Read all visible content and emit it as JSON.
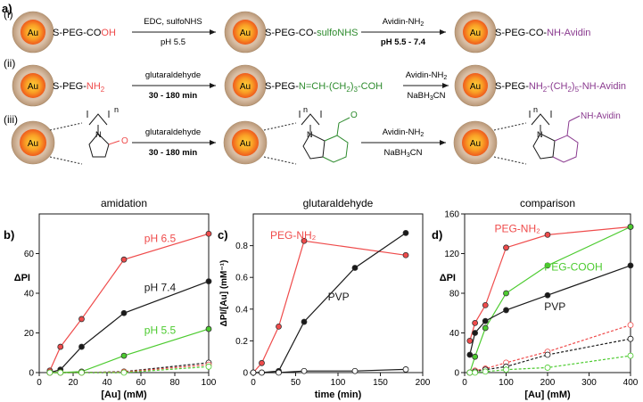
{
  "figure": {
    "scheme": {
      "panel_label": "a)",
      "particle_label": "Au",
      "rows": [
        {
          "roman": "(i)",
          "start_ligand": [
            "S-PEG-CO",
            "OH"
          ],
          "step1_above": "EDC, sulfoNHS",
          "step1_below": "pH 5.5",
          "step1_below_bold": false,
          "mid_ligand": [
            "S-PEG-CO-",
            "sulfoNHS"
          ],
          "step2_above": "Avidin-NH",
          "step2_above_sub": "2",
          "step2_below": "pH 5.5 - 7.4",
          "step2_below_bold": true,
          "end_ligand": [
            "S-PEG-CO-",
            "NH-Avidin"
          ]
        },
        {
          "roman": "(ii)",
          "start_ligand": [
            "S-PEG-",
            "NH",
            "2"
          ],
          "step1_above": "glutaraldehyde",
          "step1_below": "30 - 180 min",
          "step1_below_bold": true,
          "mid_ligand": [
            "S-PEG-",
            "N=CH-(CH",
            "2",
            ")",
            "3",
            "-COH"
          ],
          "step2_above": "Avidin-NH",
          "step2_above_sub": "2",
          "step2_below": "NaBH",
          "step2_below_sub": "3",
          "step2_below_tail": "CN",
          "end_ligand": [
            "S-PEG-",
            "NH",
            "2",
            "-(CH",
            "2",
            ")",
            "5",
            "-NH-Avidin"
          ]
        },
        {
          "roman": "(iii)",
          "step1_above": "glutaraldehyde",
          "step1_below": "30 - 180 min",
          "step1_below_bold": true,
          "step2_above": "Avidin-NH",
          "step2_above_sub": "2",
          "step2_below": "NaBH",
          "step2_below_sub": "3",
          "step2_below_tail": "CN",
          "n_label": "n",
          "end_label": "NH-Avidin",
          "ketone_o": "O",
          "aldehyde_o": "O",
          "ring_n": "N"
        }
      ]
    },
    "colors": {
      "red": "#ef4b4b",
      "black": "#1a1a1a",
      "green": "#4ccb2f",
      "purple": "#8a3a8f",
      "dark_green": "#2e8b2e",
      "gold_shell": "#c8a98f",
      "core_outer": "#f06a1f",
      "core_inner": "#fdd13a",
      "ring_purple": "#8a3a8f"
    }
  },
  "chart_data": [
    {
      "panel_label": "b)",
      "type": "line",
      "title": "amidation",
      "xlabel": "[Au] (mM)",
      "ylabel": "ΔPI",
      "xlim": [
        0,
        100
      ],
      "ylim": [
        0,
        80
      ],
      "xticks": [
        0,
        20,
        40,
        60,
        80,
        100
      ],
      "yticks": [
        0,
        20,
        40,
        60
      ],
      "series": [
        {
          "name": "pH 6.5",
          "color": "#ef4b4b",
          "dashed": false,
          "open": false,
          "x": [
            6.25,
            12.5,
            25,
            50,
            100
          ],
          "y": [
            1,
            13,
            27,
            57,
            70
          ]
        },
        {
          "name": "pH 7.4",
          "color": "#1a1a1a",
          "dashed": false,
          "open": false,
          "x": [
            6.25,
            12.5,
            25,
            50,
            100
          ],
          "y": [
            0,
            1.5,
            13,
            30,
            46
          ]
        },
        {
          "name": "pH 5.5",
          "color": "#4ccb2f",
          "dashed": false,
          "open": false,
          "x": [
            6.25,
            12.5,
            25,
            50,
            100
          ],
          "y": [
            0,
            0,
            0.5,
            8.5,
            22
          ]
        },
        {
          "name": "",
          "color": "#1a1a1a",
          "dashed": true,
          "open": true,
          "x": [
            6.25,
            12.5,
            25,
            50,
            100
          ],
          "y": [
            0,
            0,
            0,
            0.5,
            5
          ]
        },
        {
          "name": "",
          "color": "#ef4b4b",
          "dashed": true,
          "open": true,
          "x": [
            6.25,
            12.5,
            25,
            50,
            100
          ],
          "y": [
            0,
            0,
            0,
            0.3,
            4
          ]
        },
        {
          "name": "",
          "color": "#4ccb2f",
          "dashed": true,
          "open": true,
          "x": [
            6.25,
            12.5,
            25,
            50,
            100
          ],
          "y": [
            0,
            0,
            0,
            0,
            3
          ]
        }
      ]
    },
    {
      "panel_label": "c)",
      "type": "line",
      "title": "glutaraldehyde",
      "xlabel": "time (min)",
      "ylabel": "ΔPI/[Au] (mM⁻¹)",
      "xlim": [
        0,
        200
      ],
      "ylim": [
        0,
        1.0
      ],
      "xticks": [
        0,
        50,
        100,
        150,
        200
      ],
      "yticks": [
        0,
        0.2,
        0.4,
        0.6,
        0.8
      ],
      "series": [
        {
          "name": "PEG-NH₂",
          "color": "#ef4b4b",
          "dashed": false,
          "open": false,
          "x": [
            0,
            10,
            30,
            60,
            180
          ],
          "y": [
            0,
            0.06,
            0.29,
            0.83,
            0.74
          ]
        },
        {
          "name": "PVP",
          "color": "#1a1a1a",
          "dashed": false,
          "open": false,
          "x": [
            0,
            10,
            30,
            60,
            120,
            180
          ],
          "y": [
            0,
            0,
            0.01,
            0.32,
            0.66,
            0.88
          ]
        },
        {
          "name": "",
          "color": "#1a1a1a",
          "dashed": false,
          "open": true,
          "x": [
            0,
            10,
            30,
            60,
            120,
            180
          ],
          "y": [
            0,
            0,
            0,
            0.01,
            0.01,
            0.02
          ]
        }
      ]
    },
    {
      "panel_label": "d)",
      "type": "line",
      "title": "comparison",
      "xlabel": "[Au] (mM)",
      "ylabel": "ΔPI",
      "xlim": [
        0,
        400
      ],
      "ylim": [
        0,
        160
      ],
      "xticks": [
        0,
        100,
        200,
        300,
        400
      ],
      "yticks": [
        0,
        40,
        80,
        120,
        160
      ],
      "series": [
        {
          "name": "PEG-NH₂",
          "color": "#ef4b4b",
          "dashed": false,
          "open": false,
          "x": [
            12.5,
            25,
            50,
            100,
            200,
            400
          ],
          "y": [
            32,
            50,
            68,
            126,
            139,
            147
          ]
        },
        {
          "name": "PEG-COOH",
          "color": "#4ccb2f",
          "dashed": false,
          "open": false,
          "x": [
            12.5,
            25,
            50,
            100,
            200,
            400
          ],
          "y": [
            0,
            16,
            45,
            80,
            108,
            147
          ]
        },
        {
          "name": "PVP",
          "color": "#1a1a1a",
          "dashed": false,
          "open": false,
          "x": [
            12.5,
            25,
            50,
            100,
            200,
            400
          ],
          "y": [
            18,
            40,
            52,
            63,
            78,
            108
          ]
        },
        {
          "name": "",
          "color": "#ef4b4b",
          "dashed": true,
          "open": true,
          "x": [
            12.5,
            25,
            50,
            100,
            200,
            400
          ],
          "y": [
            0,
            2,
            4,
            10,
            21,
            48
          ]
        },
        {
          "name": "",
          "color": "#1a1a1a",
          "dashed": true,
          "open": true,
          "x": [
            12.5,
            25,
            50,
            100,
            200,
            400
          ],
          "y": [
            0,
            1,
            3,
            6,
            18,
            34
          ]
        },
        {
          "name": "",
          "color": "#4ccb2f",
          "dashed": true,
          "open": true,
          "x": [
            12.5,
            25,
            50,
            100,
            200,
            400
          ],
          "y": [
            0,
            0,
            1,
            3,
            5,
            17
          ]
        }
      ]
    }
  ]
}
